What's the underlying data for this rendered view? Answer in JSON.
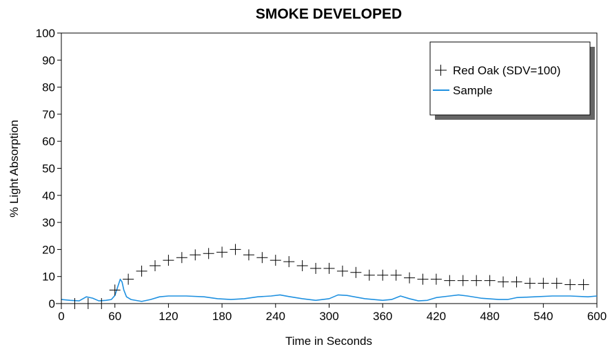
{
  "chart_data": {
    "type": "line",
    "title": "SMOKE DEVELOPED",
    "xlabel": "Time in Seconds",
    "ylabel": "% Light Absorption",
    "xlim": [
      0,
      600
    ],
    "ylim": [
      0,
      100
    ],
    "x_ticks": [
      0,
      60,
      120,
      180,
      240,
      300,
      360,
      420,
      480,
      540,
      600
    ],
    "y_ticks": [
      0,
      10,
      20,
      30,
      40,
      50,
      60,
      70,
      80,
      90,
      100
    ],
    "grid": false,
    "legend_position": "top-right",
    "series": [
      {
        "name": "Red Oak (SDV=100)",
        "marker": "plus",
        "color": "#000000",
        "x": [
          0,
          15,
          30,
          45,
          60,
          75,
          90,
          105,
          120,
          135,
          150,
          165,
          180,
          195,
          210,
          225,
          240,
          255,
          270,
          285,
          300,
          315,
          330,
          345,
          360,
          375,
          390,
          405,
          420,
          435,
          450,
          465,
          480,
          495,
          510,
          525,
          540,
          555,
          570,
          585
        ],
        "y": [
          0,
          0,
          0,
          0,
          5,
          9,
          12,
          14,
          16,
          17,
          18,
          18.5,
          19,
          20,
          18,
          17,
          16,
          15.5,
          14,
          13,
          13,
          12,
          11.5,
          10.5,
          10.5,
          10.5,
          9.5,
          9,
          9,
          8.5,
          8.5,
          8.5,
          8.5,
          8,
          8,
          7.5,
          7.5,
          7.5,
          7,
          7
        ]
      },
      {
        "name": "Sample",
        "color": "#1e90e0",
        "x": [
          0,
          10,
          20,
          28,
          35,
          42,
          50,
          56,
          60,
          63,
          66,
          68,
          70,
          73,
          78,
          90,
          100,
          110,
          120,
          140,
          160,
          175,
          190,
          205,
          220,
          235,
          245,
          255,
          270,
          285,
          300,
          310,
          320,
          340,
          360,
          370,
          380,
          390,
          400,
          410,
          420,
          435,
          445,
          455,
          470,
          490,
          500,
          510,
          530,
          550,
          570,
          590,
          600
        ],
        "y": [
          1.5,
          1.2,
          1,
          2.5,
          2,
          1,
          1.2,
          1.5,
          3,
          6,
          9,
          8,
          5,
          2.5,
          1.5,
          0.8,
          1.5,
          2.5,
          2.8,
          2.8,
          2.5,
          1.8,
          1.5,
          1.8,
          2.5,
          2.8,
          3.2,
          2.6,
          1.8,
          1.2,
          1.8,
          3.2,
          3,
          1.8,
          1.2,
          1.5,
          2.8,
          1.8,
          1,
          1.2,
          2.2,
          2.8,
          3.2,
          2.8,
          2,
          1.5,
          1.5,
          2.2,
          2.5,
          2.8,
          2.8,
          2.5,
          2.8
        ]
      }
    ]
  }
}
